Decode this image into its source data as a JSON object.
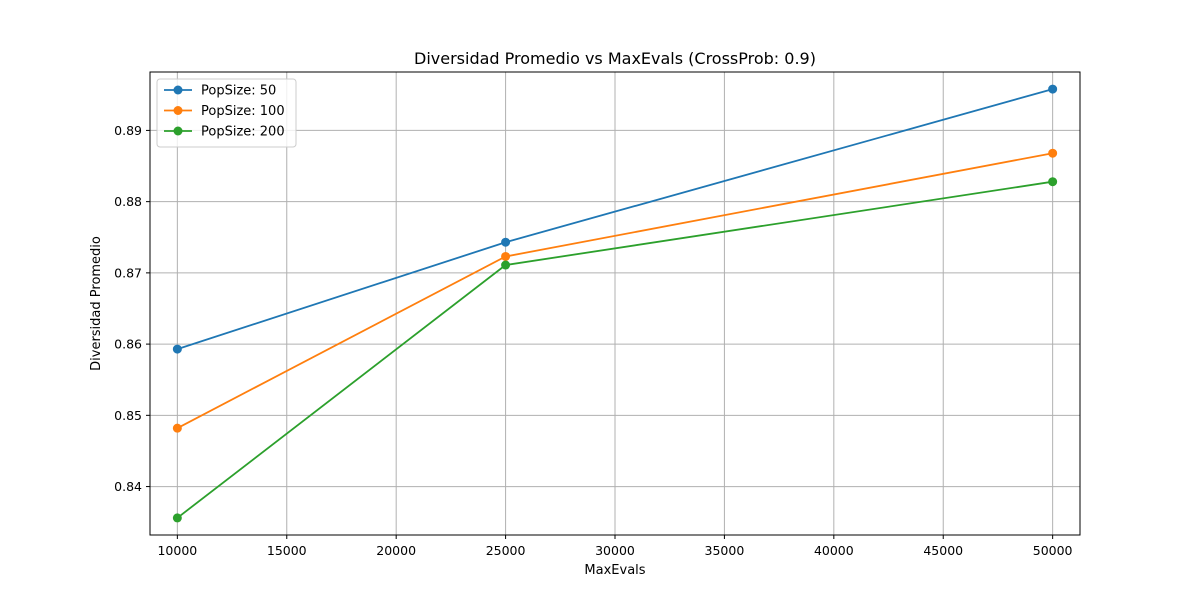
{
  "chart_data": {
    "type": "line",
    "title": "Diversidad Promedio vs MaxEvals (CrossProb: 0.9)",
    "xlabel": "MaxEvals",
    "ylabel": "Diversidad Promedio",
    "x": [
      10000,
      25000,
      50000
    ],
    "xlim": [
      8750,
      51250
    ],
    "ylim": [
      0.8332,
      0.8982
    ],
    "xticks": [
      10000,
      15000,
      20000,
      25000,
      30000,
      35000,
      40000,
      45000,
      50000
    ],
    "yticks": [
      0.84,
      0.85,
      0.86,
      0.87,
      0.88,
      0.89
    ],
    "xtick_labels": [
      "10000",
      "15000",
      "20000",
      "25000",
      "30000",
      "35000",
      "40000",
      "45000",
      "50000"
    ],
    "ytick_labels": [
      "0.84",
      "0.85",
      "0.86",
      "0.87",
      "0.88",
      "0.89"
    ],
    "grid": true,
    "legend_position": "top-left",
    "series": [
      {
        "name": "PopSize: 50",
        "color": "#1f77b4",
        "values": [
          0.8593,
          0.8743,
          0.8958
        ]
      },
      {
        "name": "PopSize: 100",
        "color": "#ff7f0e",
        "values": [
          0.8482,
          0.8723,
          0.8868
        ]
      },
      {
        "name": "PopSize: 200",
        "color": "#2ca02c",
        "values": [
          0.8356,
          0.8711,
          0.8828
        ]
      }
    ]
  }
}
